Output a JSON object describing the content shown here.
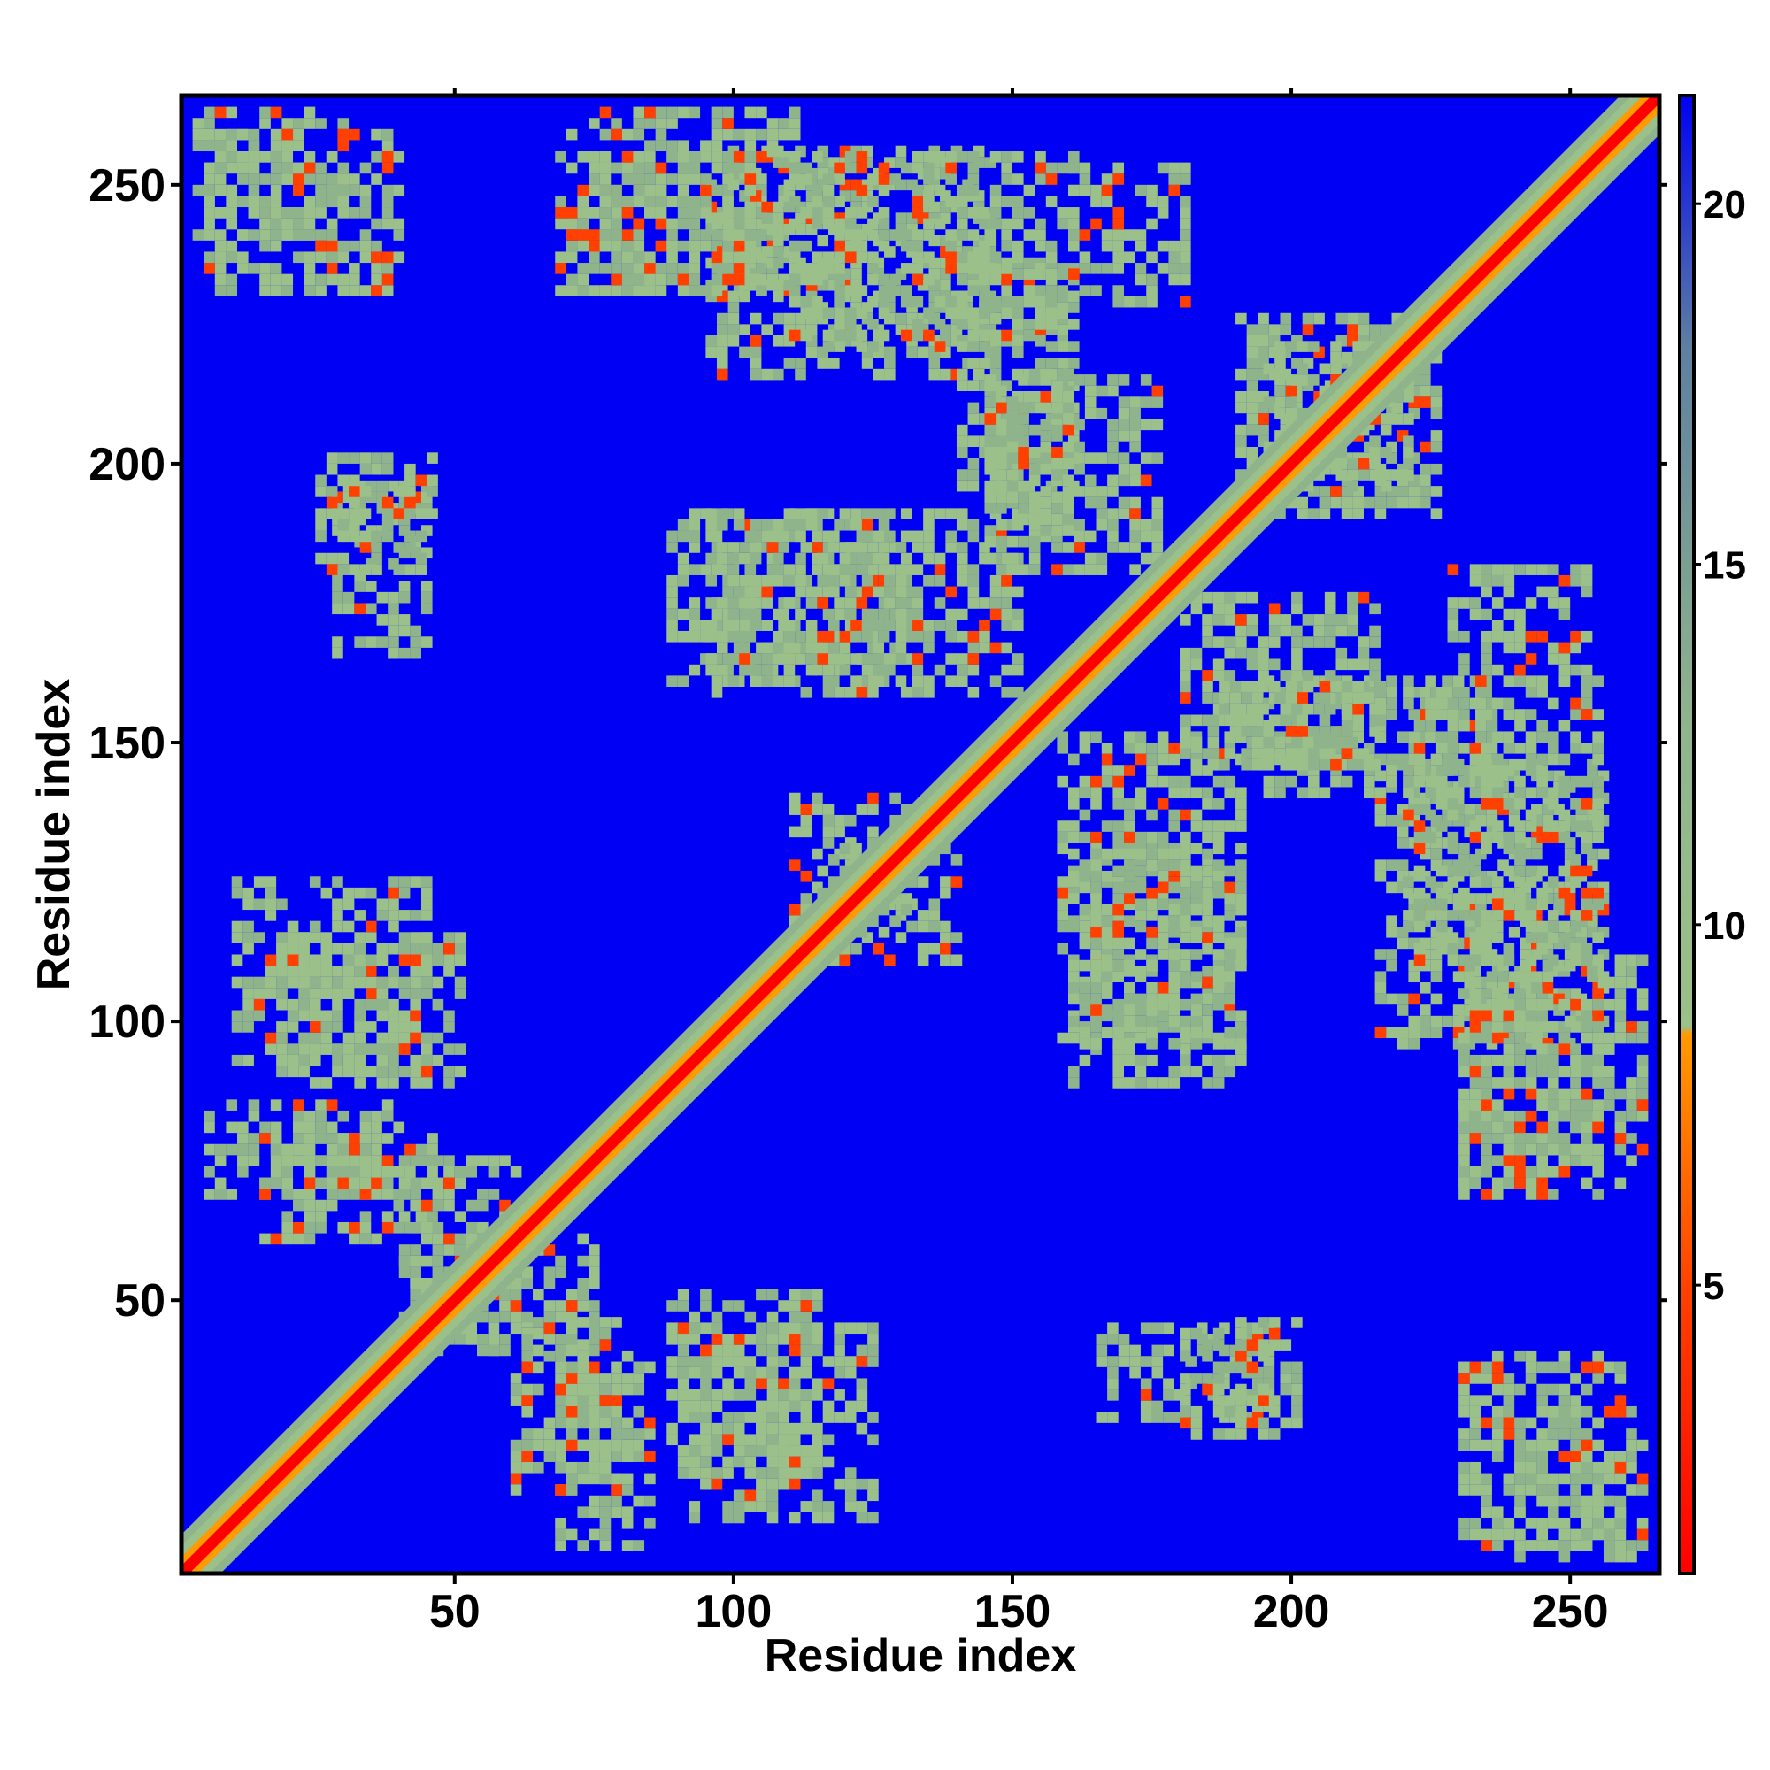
{
  "chart_data": {
    "type": "heatmap",
    "title": "",
    "xlabel": "Residue index",
    "ylabel": "Residue index",
    "xlim": [
      1,
      266
    ],
    "ylim": [
      1,
      266
    ],
    "x_ticks": [
      50,
      100,
      150,
      200,
      250
    ],
    "y_ticks": [
      50,
      100,
      150,
      200,
      250
    ],
    "colorbar": {
      "range": [
        1,
        21.5
      ],
      "ticks": [
        5,
        10,
        15,
        20
      ],
      "scale": [
        {
          "value": 1,
          "color": "#ff0000"
        },
        {
          "value": 5,
          "color": "#ff4000"
        },
        {
          "value": 8.5,
          "color": "#ff9a00"
        },
        {
          "value": 9,
          "color": "#9cc08a"
        },
        {
          "value": 13,
          "color": "#8fb48c"
        },
        {
          "value": 18,
          "color": "#5f7fa0"
        },
        {
          "value": 21,
          "color": "#0000f5"
        }
      ]
    },
    "background_color": "#0000f5",
    "diagonal": {
      "from": 1,
      "to": 266
    },
    "contact_bands": [
      {
        "i": [
          3,
          30
        ],
        "j": [
          238,
          262
        ]
      },
      {
        "i": [
          70,
          110
        ],
        "j": [
          230,
          262
        ]
      },
      {
        "i": [
          95,
          145
        ],
        "j": [
          215,
          255
        ]
      },
      {
        "i": [
          160,
          180
        ],
        "j": [
          228,
          252
        ]
      },
      {
        "i": [
          140,
          160
        ],
        "j": [
          195,
          235
        ]
      },
      {
        "i": [
          28,
          45
        ],
        "j": [
          165,
          195
        ]
      },
      {
        "i": [
          88,
          150
        ],
        "j": [
          158,
          190
        ]
      },
      {
        "i": [
          145,
          175
        ],
        "j": [
          180,
          215
        ]
      },
      {
        "i": [
          185,
          215
        ],
        "j": [
          145,
          160
        ]
      },
      {
        "i": [
          220,
          255
        ],
        "j": [
          110,
          160
        ]
      },
      {
        "i": [
          10,
          45
        ],
        "j": [
          92,
          125
        ]
      },
      {
        "i": [
          5,
          38
        ],
        "j": [
          68,
          85
        ]
      },
      {
        "i": [
          160,
          190
        ],
        "j": [
          95,
          130
        ]
      },
      {
        "i": [
          230,
          255
        ],
        "j": [
          68,
          105
        ]
      },
      {
        "i": [
          88,
          115
        ],
        "j": [
          18,
          50
        ]
      },
      {
        "i": [
          60,
          80
        ],
        "j": [
          15,
          45
        ]
      },
      {
        "i": [
          180,
          200
        ],
        "j": [
          25,
          45
        ]
      },
      {
        "i": [
          230,
          258
        ],
        "j": [
          5,
          40
        ]
      },
      {
        "i": [
          40,
          60
        ],
        "j": [
          40,
          75
        ]
      },
      {
        "i": [
          110,
          130
        ],
        "j": [
          115,
          140
        ]
      },
      {
        "i": [
          190,
          220
        ],
        "j": [
          195,
          225
        ]
      }
    ]
  }
}
